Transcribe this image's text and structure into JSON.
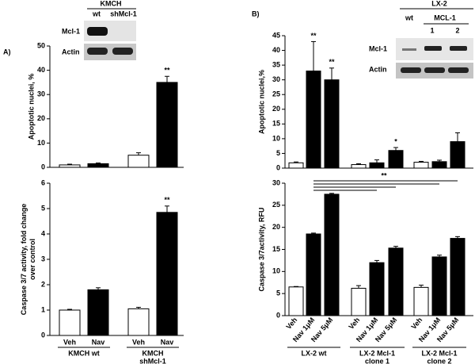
{
  "panel_labels": [
    "A)",
    "B)"
  ],
  "blots": [
    {
      "title": "KMCH",
      "lanes": [
        "wt",
        "shMcl-1"
      ],
      "rows": [
        "Mcl-1",
        "Actin"
      ]
    },
    {
      "title": "LX-2",
      "lanes": [
        "wt"
      ],
      "group": "MCL-1",
      "group_lanes": [
        "1",
        "2"
      ],
      "rows": [
        "Mcl-1",
        "Actin"
      ]
    }
  ],
  "chart_data": [
    {
      "type": "bar",
      "ylabel": [
        "Apoptotic nuclei, %"
      ],
      "values": [
        1,
        1.5,
        5,
        35
      ],
      "errors": [
        0.3,
        0.3,
        1,
        2.5
      ],
      "colors": [
        "#ffffff",
        "#000000",
        "#ffffff",
        "#000000"
      ],
      "significance": [
        null,
        null,
        null,
        "**"
      ],
      "ylim": [
        0,
        50
      ],
      "yticks": [
        0,
        10,
        20,
        30,
        40,
        50
      ]
    },
    {
      "type": "bar",
      "ylabel": [
        "Caspase 3/7 activity, fold change",
        "over control"
      ],
      "categories": [
        "Veh",
        "Nav",
        "Veh",
        "Nav"
      ],
      "groups": [
        [
          "KMCH wt"
        ],
        [
          "KMCH",
          "shMcl-1"
        ]
      ],
      "values": [
        1,
        1.8,
        1.05,
        4.85
      ],
      "errors": [
        0.03,
        0.08,
        0.06,
        0.25
      ],
      "colors": [
        "#ffffff",
        "#000000",
        "#ffffff",
        "#000000"
      ],
      "significance": [
        null,
        null,
        null,
        "**"
      ],
      "ylim": [
        0,
        6
      ],
      "yticks": [
        0,
        1,
        2,
        3,
        4,
        5,
        6
      ]
    },
    {
      "type": "bar",
      "ylabel": [
        "Apoptotic nuclei,%"
      ],
      "values": [
        1.8,
        33,
        30,
        1.2,
        1.8,
        6,
        2,
        2.2,
        9
      ],
      "errors": [
        0.3,
        10,
        4,
        0.3,
        1,
        1,
        0.3,
        0.5,
        3
      ],
      "colors": [
        "#ffffff",
        "#000000",
        "#000000",
        "#ffffff",
        "#000000",
        "#000000",
        "#ffffff",
        "#000000",
        "#000000"
      ],
      "significance": [
        null,
        "**",
        "**",
        null,
        null,
        "*",
        null,
        null,
        null
      ],
      "ylim": [
        0,
        45
      ],
      "yticks": [
        0,
        5,
        10,
        15,
        20,
        25,
        30,
        35,
        40,
        45
      ]
    },
    {
      "type": "bar",
      "ylabel": [
        "Caspase 3/7activity, RFU"
      ],
      "categories": [
        "Veh",
        "Nav 1μM",
        "Nav 5μM",
        "Veh",
        "Nav 1μM",
        "Nav 5μM",
        "Veh",
        "Nav 1μM",
        "Nav 5μM"
      ],
      "groups": [
        [
          "LX-2 wt"
        ],
        [
          "LX-2 Mcl-1",
          "clone 1"
        ],
        [
          "LX-2 Mcl-1",
          "clone 2"
        ]
      ],
      "values": [
        6.5,
        18.5,
        27.5,
        6.2,
        12,
        15.3,
        6.4,
        13.3,
        17.5
      ],
      "errors": [
        0.1,
        0.2,
        0.2,
        0.6,
        0.5,
        0.4,
        0.5,
        0.4,
        0.4
      ],
      "colors": [
        "#ffffff",
        "#000000",
        "#000000",
        "#ffffff",
        "#000000",
        "#000000",
        "#ffffff",
        "#000000",
        "#000000"
      ],
      "bracket_label": "**",
      "ylim": [
        0,
        30
      ],
      "yticks": [
        0,
        5,
        10,
        15,
        20,
        25,
        30
      ]
    }
  ]
}
